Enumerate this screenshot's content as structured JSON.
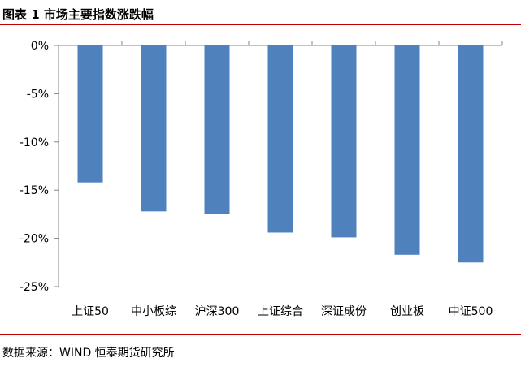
{
  "figure_title": "图表 1 市场主要指数涨跌幅",
  "source_text": "数据来源：WIND 恒泰期货研究所",
  "chart_data": {
    "type": "bar",
    "categories": [
      "上证50",
      "中小板综",
      "沪深300",
      "上证综合",
      "深证成份",
      "创业板",
      "中证500"
    ],
    "values": [
      -14.2,
      -17.2,
      -17.5,
      -19.4,
      -19.9,
      -21.7,
      -22.5
    ],
    "ylim": [
      -25,
      0
    ],
    "yticks": [
      0,
      -5,
      -10,
      -15,
      -20,
      -25
    ],
    "ytick_labels": [
      "0%",
      "-5%",
      "-10%",
      "-15%",
      "-20%",
      "-25%"
    ],
    "unit": "%",
    "bar_color": "#4f81bd",
    "grid": false,
    "legend": "none"
  }
}
